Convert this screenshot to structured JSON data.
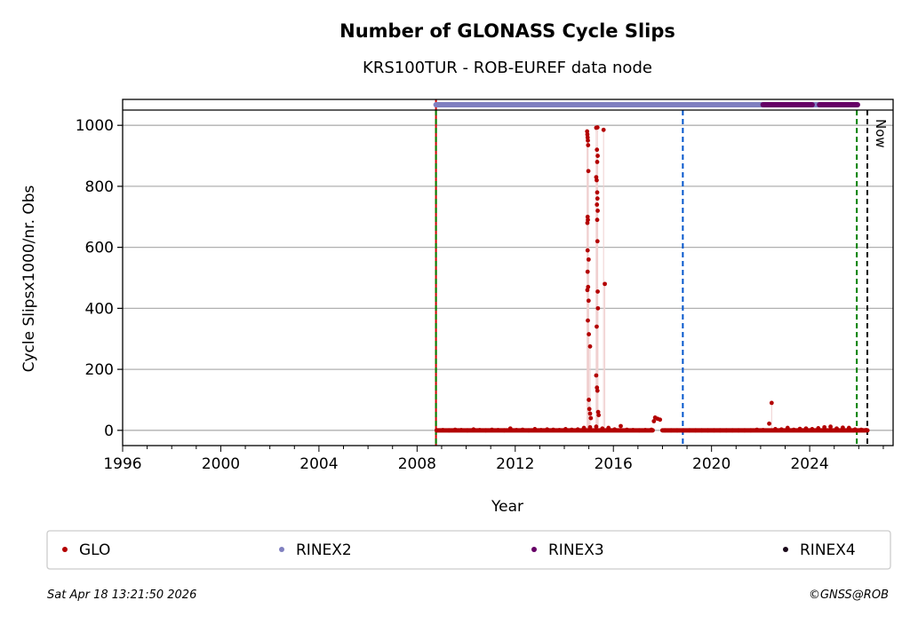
{
  "chart_data": {
    "type": "scatter",
    "title": "Number of GLONASS Cycle Slips",
    "subtitle": "KRS100TUR - ROB-EUREF data node",
    "xlabel": "Year",
    "ylabel": "Cycle Slipsx1000/nr. Obs",
    "xlim": [
      1996,
      2027.4
    ],
    "ylim": [
      -50,
      1050
    ],
    "xticks": [
      1996,
      2000,
      2004,
      2008,
      2012,
      2016,
      2020,
      2024
    ],
    "yticks": [
      0,
      200,
      400,
      600,
      800,
      1000
    ],
    "grid": "horizontal",
    "legend_placement": "bottom",
    "series": [
      {
        "name": "GLO",
        "color": "#b30000",
        "points": [
          [
            2008.8,
            0
          ],
          [
            2009.05,
            1
          ],
          [
            2009.3,
            0
          ],
          [
            2009.55,
            2
          ],
          [
            2009.8,
            1
          ],
          [
            2010.05,
            0
          ],
          [
            2010.3,
            3
          ],
          [
            2010.55,
            1
          ],
          [
            2010.8,
            0
          ],
          [
            2011.05,
            2
          ],
          [
            2011.3,
            1
          ],
          [
            2011.55,
            0
          ],
          [
            2011.8,
            6
          ],
          [
            2012.05,
            1
          ],
          [
            2012.3,
            2
          ],
          [
            2012.55,
            0
          ],
          [
            2012.8,
            4
          ],
          [
            2013.05,
            1
          ],
          [
            2013.3,
            3
          ],
          [
            2013.55,
            2
          ],
          [
            2013.8,
            1
          ],
          [
            2014.05,
            4
          ],
          [
            2014.3,
            2
          ],
          [
            2014.55,
            3
          ],
          [
            2014.8,
            8
          ],
          [
            2015.05,
            10
          ],
          [
            2015.3,
            12
          ],
          [
            2015.55,
            6
          ],
          [
            2015.8,
            8
          ],
          [
            2016.05,
            3
          ],
          [
            2016.3,
            14
          ],
          [
            2016.55,
            2
          ],
          [
            2016.8,
            1
          ],
          [
            2017.05,
            0
          ],
          [
            2017.3,
            1
          ],
          [
            2017.55,
            2
          ],
          [
            2017.65,
            30
          ],
          [
            2017.7,
            42
          ],
          [
            2017.8,
            38
          ],
          [
            2017.9,
            35
          ],
          [
            2018.1,
            0
          ],
          [
            2018.35,
            0
          ],
          [
            2018.6,
            0
          ],
          [
            2018.85,
            0
          ],
          [
            2019.1,
            0
          ],
          [
            2019.35,
            0
          ],
          [
            2019.6,
            0
          ],
          [
            2019.85,
            0
          ],
          [
            2020.1,
            0
          ],
          [
            2020.35,
            0
          ],
          [
            2020.6,
            0
          ],
          [
            2020.85,
            0
          ],
          [
            2021.1,
            0
          ],
          [
            2021.35,
            0
          ],
          [
            2021.6,
            0
          ],
          [
            2021.85,
            2
          ],
          [
            2022.1,
            1
          ],
          [
            2022.35,
            22
          ],
          [
            2022.45,
            90
          ],
          [
            2022.6,
            4
          ],
          [
            2022.85,
            3
          ],
          [
            2023.1,
            8
          ],
          [
            2023.35,
            2
          ],
          [
            2023.6,
            5
          ],
          [
            2023.85,
            6
          ],
          [
            2024.1,
            4
          ],
          [
            2024.35,
            7
          ],
          [
            2024.6,
            10
          ],
          [
            2024.85,
            12
          ],
          [
            2025.1,
            6
          ],
          [
            2025.35,
            9
          ],
          [
            2025.6,
            8
          ],
          [
            2025.85,
            3
          ],
          [
            2026.1,
            2
          ],
          [
            2026.3,
            1
          ],
          [
            2014.93,
            980
          ],
          [
            2014.94,
            970
          ],
          [
            2014.95,
            960
          ],
          [
            2014.96,
            950
          ],
          [
            2014.97,
            935
          ],
          [
            2014.98,
            850
          ],
          [
            2014.95,
            700
          ],
          [
            2014.96,
            690
          ],
          [
            2014.94,
            680
          ],
          [
            2014.95,
            590
          ],
          [
            2014.99,
            560
          ],
          [
            2014.95,
            520
          ],
          [
            2014.94,
            460
          ],
          [
            2014.97,
            470
          ],
          [
            2014.99,
            425
          ],
          [
            2014.96,
            360
          ],
          [
            2015.0,
            315
          ],
          [
            2015.05,
            275
          ],
          [
            2015.0,
            100
          ],
          [
            2015.02,
            70
          ],
          [
            2015.05,
            55
          ],
          [
            2015.08,
            40
          ],
          [
            2015.3,
            992
          ],
          [
            2015.35,
            993
          ],
          [
            2015.33,
            920
          ],
          [
            2015.36,
            900
          ],
          [
            2015.34,
            880
          ],
          [
            2015.3,
            830
          ],
          [
            2015.32,
            820
          ],
          [
            2015.34,
            780
          ],
          [
            2015.35,
            760
          ],
          [
            2015.33,
            740
          ],
          [
            2015.36,
            720
          ],
          [
            2015.34,
            690
          ],
          [
            2015.35,
            620
          ],
          [
            2015.36,
            455
          ],
          [
            2015.37,
            400
          ],
          [
            2015.32,
            340
          ],
          [
            2015.3,
            180
          ],
          [
            2015.33,
            140
          ],
          [
            2015.35,
            130
          ],
          [
            2015.38,
            60
          ],
          [
            2015.4,
            50
          ],
          [
            2015.6,
            985
          ],
          [
            2015.65,
            480
          ]
        ]
      },
      {
        "name": "RINEX2",
        "color": "#8080c0",
        "ranges": [
          [
            2008.77,
            2022.1
          ],
          [
            2024.1,
            2024.4
          ]
        ]
      },
      {
        "name": "RINEX3",
        "color": "#660066",
        "ranges": [
          [
            2022.1,
            2024.1
          ],
          [
            2024.4,
            2025.95
          ]
        ]
      },
      {
        "name": "RINEX4",
        "color": "#1a0a1a",
        "ranges": []
      }
    ],
    "markers": [
      {
        "x": 2008.77,
        "color": "#008000",
        "color2": "#cc0000"
      },
      {
        "x": 2018.83,
        "color": "#0055cc"
      },
      {
        "x": 2025.92,
        "color": "#008000"
      },
      {
        "x": 2026.35,
        "color": "#000000",
        "label": "Now"
      }
    ]
  },
  "footer": {
    "timestamp": "Sat Apr 18 13:21:50 2026",
    "copyright": "©GNSS@ROB"
  }
}
